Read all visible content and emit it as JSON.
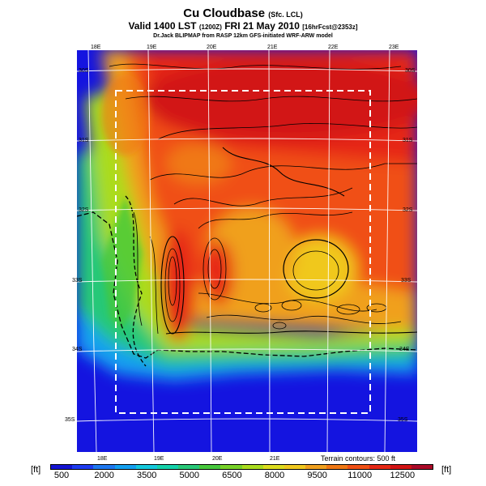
{
  "header": {
    "title": "Cu Cloudbase",
    "title_suffix": "(Sfc. LCL)",
    "valid_prefix": "Valid 1400 LST",
    "valid_zulu": "(1200Z)",
    "valid_date": "FRI 21 May 2010",
    "valid_fcst": "[16hrFcst@2353z]",
    "credit": "Dr.Jack BLIPMAP from RASP 12km GFS-initiated WRF-ARW model"
  },
  "map": {
    "lon_labels_top": [
      "18E",
      "19E",
      "20E",
      "21E",
      "22E",
      "23E"
    ],
    "lon_labels_bottom": [
      "18E",
      "19E",
      "20E",
      "21E"
    ],
    "lat_labels_left": [
      "30S",
      "31S",
      "32S",
      "33S",
      "34S",
      "35S"
    ],
    "lat_labels_right": [
      "30S",
      "31S",
      "32S",
      "33S",
      "34S",
      "35S"
    ],
    "terrain_note": "Terrain contours: 500 ft"
  },
  "legend": {
    "unit_left": "[ft]",
    "unit_right": "[ft]",
    "labels": [
      "500",
      "2000",
      "3500",
      "5000",
      "6500",
      "8000",
      "9500",
      "11000",
      "12500"
    ],
    "colors": [
      "#1414d2",
      "#1e3cf0",
      "#1e78f0",
      "#14a0f0",
      "#14c8dc",
      "#14d2aa",
      "#28c878",
      "#46c83c",
      "#78d228",
      "#aadc1e",
      "#dcdc1e",
      "#f0c81e",
      "#f0a01e",
      "#f07814",
      "#f05014",
      "#e62814",
      "#d21414",
      "#aa0a28"
    ]
  }
}
